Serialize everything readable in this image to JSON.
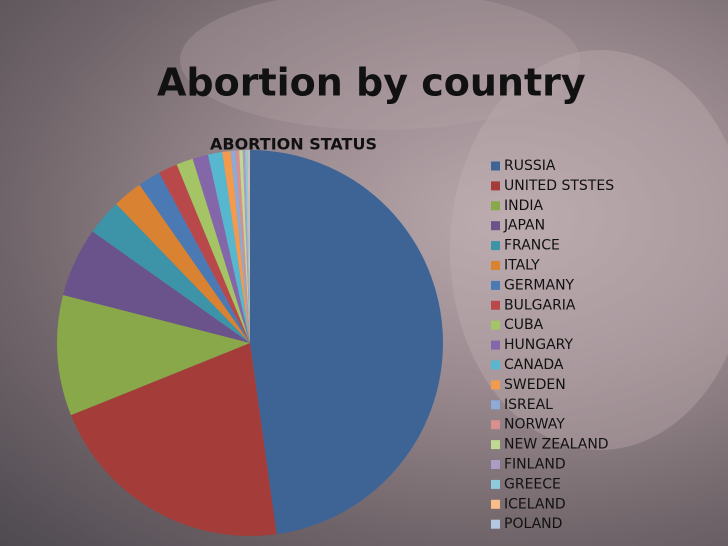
{
  "title": "Abortion by country",
  "chart_data": {
    "type": "pie",
    "title": "ABORTION STATUS",
    "legend": "right",
    "categories": [
      "RUSSIA",
      "UNITED STSTES",
      "INDIA",
      "JAPAN",
      "FRANCE",
      "ITALY",
      "GERMANY",
      "BULGARIA",
      "CUBA",
      "HUNGARY",
      "CANADA",
      "SWEDEN",
      "ISREAL",
      "NORWAY",
      "NEW ZEALAND",
      "FINLAND",
      "GREECE",
      "ICELAND",
      "POLAND"
    ],
    "values": [
      47.8,
      21.1,
      10.1,
      5.8,
      3.0,
      2.5,
      1.9,
      1.6,
      1.4,
      1.3,
      1.2,
      0.7,
      0.4,
      0.3,
      0.3,
      0.2,
      0.2,
      0.1,
      0.1
    ],
    "colors": [
      "#3e6496",
      "#a43c3a",
      "#88a84a",
      "#6a528a",
      "#3d93a8",
      "#d98232",
      "#4a79b3",
      "#b8484a",
      "#a4c466",
      "#8367a8",
      "#57b7cf",
      "#f29a4e",
      "#8eaad6",
      "#d98f8d",
      "#c0d892",
      "#ab9cc6",
      "#8fcadb",
      "#f8bd89",
      "#b5c8e2"
    ]
  }
}
